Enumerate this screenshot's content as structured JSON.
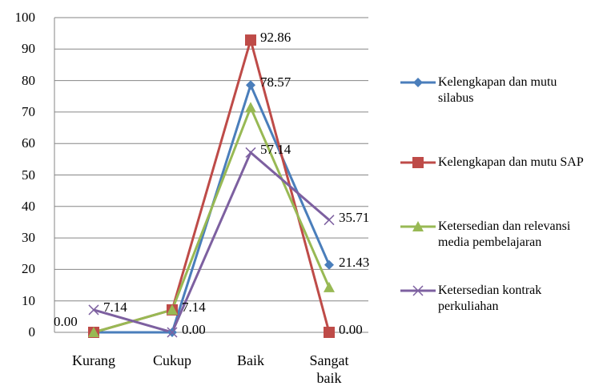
{
  "chart_data": {
    "type": "line",
    "categories": [
      "Kurang",
      "Cukup",
      "Baik",
      "Sangat baik"
    ],
    "series": [
      {
        "name": "Kelengkapan dan mutu silabus",
        "color": "#4a7ebb",
        "marker": "diamond",
        "values": [
          0,
          0,
          78.57,
          21.43
        ],
        "value_labels": [
          "0.00",
          null,
          "78.57",
          "21.43"
        ]
      },
      {
        "name": "Kelengkapan dan mutu SAP",
        "color": "#be4b48",
        "marker": "square",
        "values": [
          0,
          7.14,
          92.86,
          0
        ],
        "value_labels": [
          null,
          "7.14",
          "92.86",
          "0.00"
        ]
      },
      {
        "name": "Ketersedian dan relevansi media pembelajaran",
        "color": "#98b954",
        "marker": "triangle",
        "values": [
          0,
          7.14,
          71.43,
          14.29
        ]
      },
      {
        "name": "Ketersedian  kontrak perkuliahan",
        "color": "#7d60a0",
        "marker": "x",
        "values": [
          7.14,
          0,
          57.14,
          35.71
        ],
        "value_labels": [
          "7.14",
          "0.00",
          "57.14",
          "35.71"
        ]
      }
    ],
    "ylim": [
      0,
      100
    ],
    "yticks": [
      0,
      10,
      20,
      30,
      40,
      50,
      60,
      70,
      80,
      90,
      100
    ],
    "grid": true,
    "legend": "right"
  }
}
